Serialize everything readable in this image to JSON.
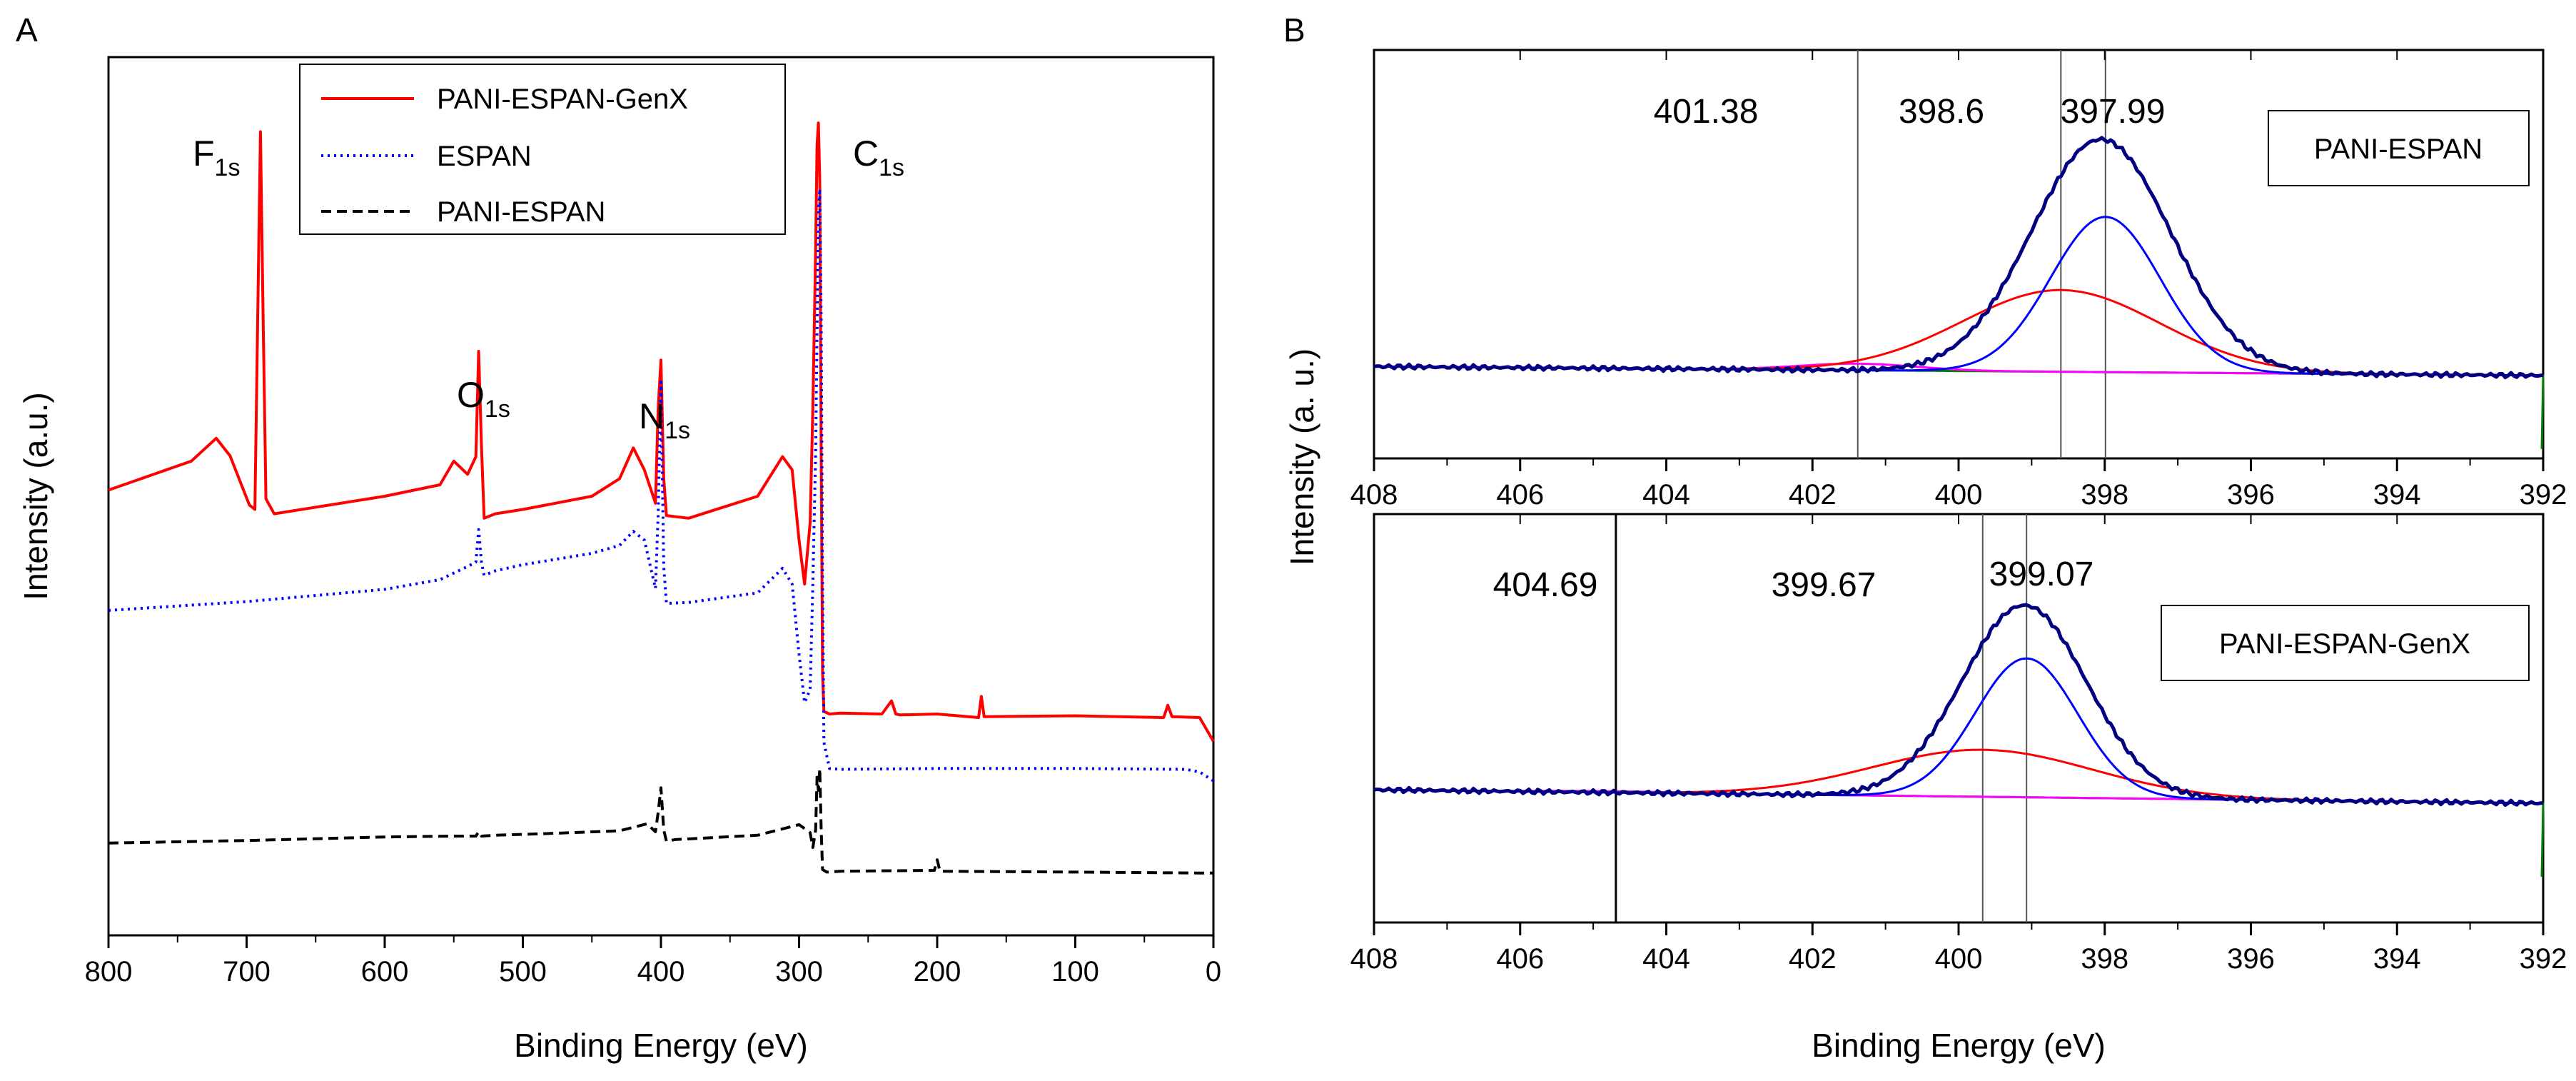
{
  "chart_data": [
    {
      "panel_label": "A",
      "type": "line",
      "title": "",
      "xlabel": "Binding Energy (eV)",
      "ylabel": "Intensity (a.u.)",
      "xlim": [
        800,
        0
      ],
      "ylim": [
        0,
        100
      ],
      "xticks": [
        "800",
        "700",
        "600",
        "500",
        "400",
        "300",
        "200",
        "100",
        "0"
      ],
      "y_tick_labels": false,
      "grid": false,
      "legend_position": "top-center",
      "series": [
        {
          "name": "PANI-ESPAN-GenX",
          "color": "#ff0000",
          "dash": "solid",
          "x": [
            800,
            740,
            722,
            712,
            698,
            694,
            692,
            690,
            688,
            686,
            680,
            600,
            560,
            550,
            540,
            534,
            532,
            530,
            528,
            520,
            500,
            450,
            430,
            420,
            412,
            404,
            402,
            400,
            398,
            396,
            380,
            330,
            312,
            305,
            300,
            296,
            292,
            290,
            288,
            287,
            286,
            285,
            284,
            283,
            282,
            278,
            270,
            240,
            233,
            230,
            227,
            200,
            170,
            168,
            166,
            100,
            36,
            33,
            30,
            10,
            0
          ],
          "y": [
            50.7,
            54.0,
            56.6,
            54.6,
            49.0,
            48.5,
            70.0,
            91.5,
            70.0,
            49.7,
            48.0,
            50.0,
            51.3,
            54.0,
            52.5,
            54.5,
            66.5,
            55.8,
            47.5,
            48.0,
            48.5,
            50.0,
            52.0,
            55.5,
            53.0,
            49.2,
            60.0,
            65.5,
            52.0,
            47.8,
            47.5,
            50.0,
            54.5,
            53.0,
            45.0,
            40.0,
            47.0,
            60.0,
            78.0,
            90.0,
            92.5,
            86.0,
            55.0,
            30.0,
            25.5,
            25.2,
            25.3,
            25.2,
            26.7,
            25.2,
            25.1,
            25.2,
            24.8,
            27.2,
            24.9,
            25.0,
            24.8,
            26.2,
            24.9,
            24.8,
            22.1
          ]
        },
        {
          "name": "ESPAN",
          "color": "#0000ff",
          "dash": "dotted",
          "x": [
            800,
            700,
            600,
            560,
            540,
            534,
            532,
            530,
            528,
            520,
            500,
            450,
            430,
            420,
            412,
            404,
            402,
            400,
            398,
            396,
            380,
            330,
            312,
            305,
            300,
            296,
            292,
            290,
            288,
            286,
            285,
            284,
            283,
            282,
            278,
            270,
            200,
            100,
            20,
            10,
            0
          ],
          "y": [
            37.0,
            38.0,
            39.4,
            40.5,
            42.0,
            42.5,
            46.2,
            42.5,
            41.0,
            41.5,
            42.2,
            43.5,
            44.4,
            46.0,
            45.0,
            39.5,
            48.0,
            63.0,
            42.0,
            37.8,
            37.9,
            39.0,
            41.8,
            40.0,
            32.0,
            26.5,
            28.0,
            40.0,
            55.0,
            82.0,
            85.0,
            70.0,
            40.0,
            22.0,
            19.0,
            18.9,
            19.0,
            19.0,
            18.9,
            18.6,
            17.6
          ]
        },
        {
          "name": "PANI-ESPAN",
          "color": "#000000",
          "dash": "dashed",
          "x": [
            800,
            700,
            600,
            550,
            534,
            532,
            530,
            520,
            480,
            430,
            410,
            404,
            402,
            400,
            398,
            396,
            390,
            330,
            300,
            292,
            290,
            288,
            287,
            286,
            285,
            284,
            283,
            280,
            270,
            202,
            200,
            198,
            100,
            10,
            0
          ],
          "y": [
            10.5,
            10.8,
            11.2,
            11.3,
            11.3,
            11.8,
            11.3,
            11.4,
            11.6,
            11.9,
            12.7,
            11.8,
            14.0,
            16.8,
            12.0,
            10.7,
            10.9,
            11.4,
            12.6,
            11.7,
            10.0,
            12.0,
            18.0,
            16.5,
            19.0,
            12.0,
            7.5,
            7.2,
            7.3,
            7.4,
            8.6,
            7.3,
            7.2,
            7.1,
            7.1
          ]
        }
      ],
      "peak_labels": [
        {
          "base": "F",
          "sub": "1s",
          "x": 688
        },
        {
          "base": "O",
          "sub": "1s",
          "x": 531
        },
        {
          "base": "N",
          "sub": "1s",
          "x": 400
        },
        {
          "base": "C",
          "sub": "1s",
          "x": 284
        }
      ]
    },
    {
      "panel_label": "B",
      "type": "line",
      "title": "",
      "xlabel": "Binding Energy (eV)",
      "ylabel": "Intensity (a. u.)",
      "x_tick_labels": [
        "408",
        "406",
        "404",
        "402",
        "400",
        "398",
        "396",
        "394",
        "392"
      ],
      "subplots": [
        {
          "name": "PANI-ESPAN",
          "legend_box": "PANI-ESPAN",
          "xlim": [
            408,
            392
          ],
          "ylim": [
            0,
            100
          ],
          "peak_lines": [
            401.38,
            398.6,
            397.99
          ],
          "peak_line_labels": [
            "401.38",
            "398.6",
            "397.99"
          ],
          "components": [
            {
              "name": "envelope",
              "color": "#000080",
              "center": 398.05,
              "sigma": 0.95,
              "amp": 57
            },
            {
              "name": "component-397.99",
              "color": "#0000ff",
              "center": 397.99,
              "sigma": 0.75,
              "amp": 38
            },
            {
              "name": "component-398.6",
              "color": "#ff0000",
              "center": 398.6,
              "sigma": 1.35,
              "amp": 20
            },
            {
              "name": "component-401.38",
              "color": "#ff00ff",
              "center": 401.38,
              "sigma": 0.8,
              "amp": 1.6
            },
            {
              "name": "background",
              "color": "#008000",
              "start": 22.5,
              "end": 20.3
            }
          ]
        },
        {
          "name": "PANI-ESPAN-GenX",
          "legend_box": "PANI-ESPAN-GenX",
          "xlim": [
            408,
            392
          ],
          "ylim": [
            0,
            100
          ],
          "peak_lines": [
            404.69,
            399.67,
            399.07
          ],
          "peak_line_labels": [
            "404.69",
            "399.67",
            "399.07"
          ],
          "components": [
            {
              "name": "envelope",
              "color": "#000080",
              "center": 399.1,
              "sigma": 0.85,
              "amp": 47
            },
            {
              "name": "component-399.07",
              "color": "#0000ff",
              "center": 399.07,
              "sigma": 0.7,
              "amp": 34
            },
            {
              "name": "component-399.67",
              "color": "#ff0000",
              "center": 399.67,
              "sigma": 1.5,
              "amp": 11.5
            },
            {
              "name": "component-404.69",
              "color": "#ff00ff",
              "center": 404.69,
              "sigma": 1.0,
              "amp": 0.3
            },
            {
              "name": "background",
              "color": "#008000",
              "start": 32.5,
              "end": 29.2
            }
          ]
        }
      ]
    }
  ]
}
